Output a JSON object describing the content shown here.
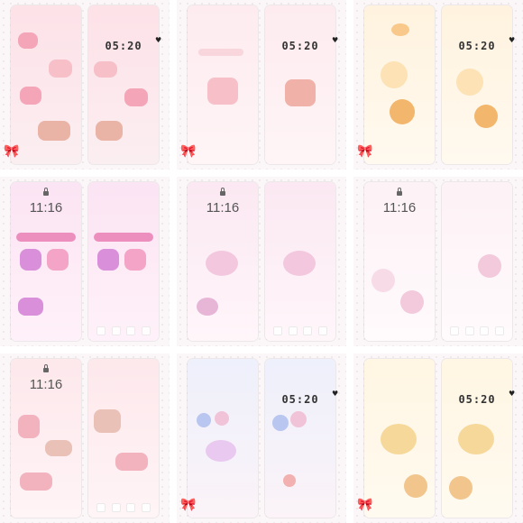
{
  "grid": {
    "cells": [
      {
        "time": "05:20",
        "style": "lock-dock",
        "palette": {
          "bg": "#fde8ec",
          "accent": "#f4a5b7",
          "deco": "#e9b3a6"
        }
      },
      {
        "time": "05:20",
        "style": "lock-dock",
        "palette": {
          "bg": "#fdebef",
          "accent": "#f7c0c9",
          "deco": "#f0b1a8"
        }
      },
      {
        "time": "05:20",
        "style": "lock-dock",
        "palette": {
          "bg": "#fff3df",
          "accent": "#f8c98a",
          "deco": "#f2b66c"
        }
      },
      {
        "time": "11:16",
        "style": "ios-lock",
        "palette": {
          "bg": "#fbe4f3",
          "accent": "#d98fd9",
          "deco": "#ec8fbf"
        }
      },
      {
        "time": "11:16",
        "style": "ios-lock",
        "palette": {
          "bg": "#fbe8f2",
          "accent": "#e7b5d6",
          "deco": "#f3c8de"
        }
      },
      {
        "time": "11:16",
        "style": "ios-lock",
        "palette": {
          "bg": "#fdf2f6",
          "accent": "#f2cadb",
          "deco": "#f7dbe6"
        }
      },
      {
        "time": "11:16",
        "style": "ios-lock",
        "palette": {
          "bg": "#fde8ec",
          "accent": "#f2b3bf",
          "deco": "#e9c1b7"
        }
      },
      {
        "time": "05:20",
        "style": "lock-dock",
        "palette": {
          "bg": "#eef0fb",
          "accent": "#b8c6f0",
          "deco": "#f1c3d8"
        }
      },
      {
        "time": "05:20",
        "style": "lock-dock",
        "palette": {
          "bg": "#fff6e3",
          "accent": "#f6d89a",
          "deco": "#f1c58b"
        }
      }
    ]
  }
}
